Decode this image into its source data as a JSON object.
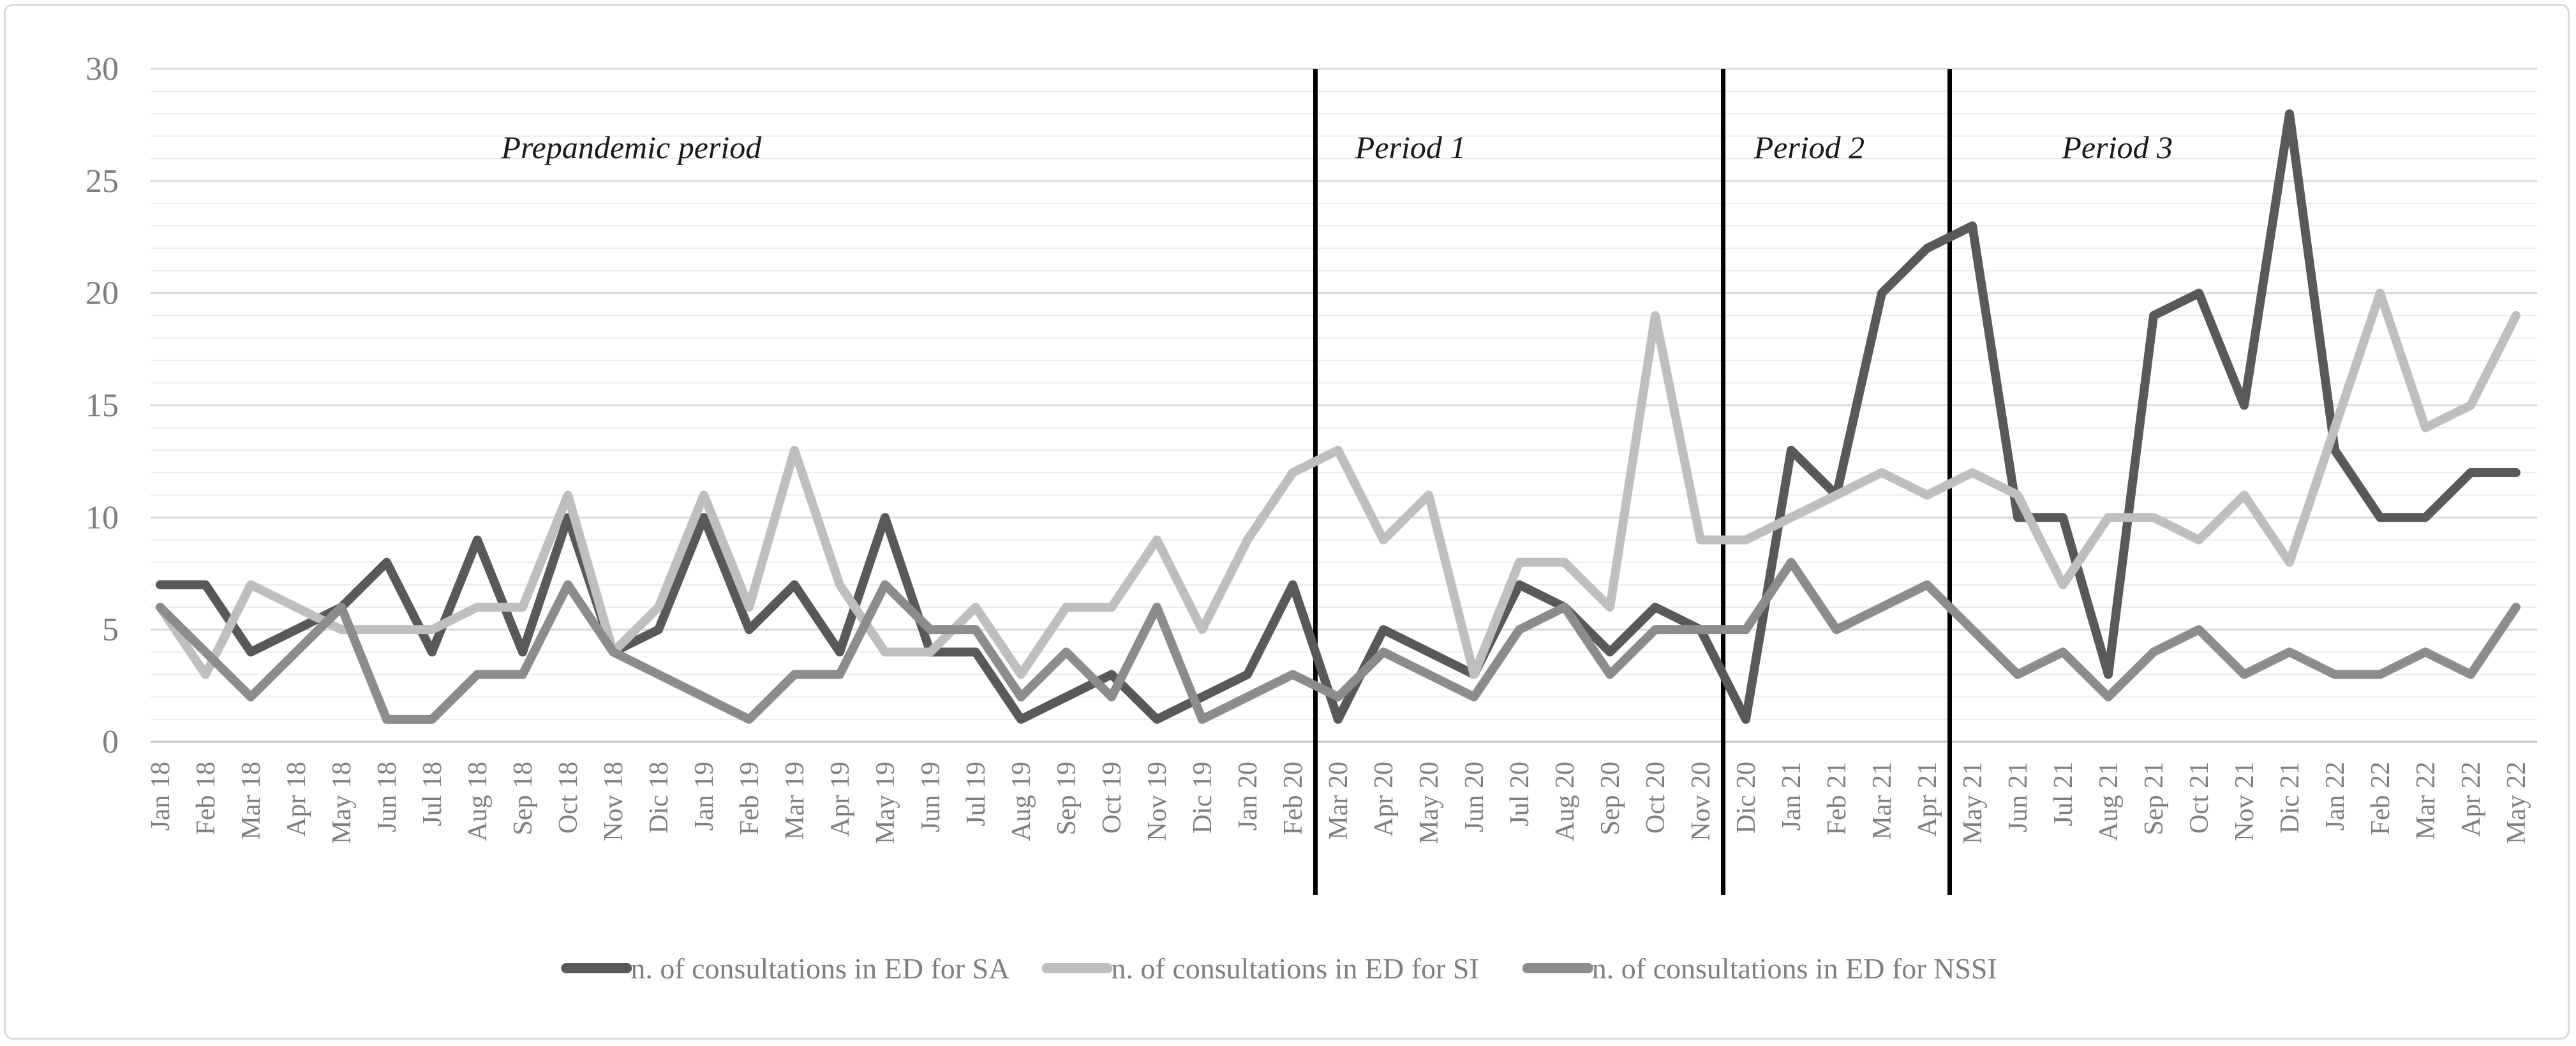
{
  "figure": {
    "background": "#ffffff",
    "border_color": "#d9d9d9"
  },
  "chart_data": {
    "type": "line",
    "title": "",
    "xlabel": "",
    "ylabel": "",
    "ylim": [
      0,
      30
    ],
    "ytick_interval": 5,
    "minor_grid_interval": 1,
    "grid": "horizontal",
    "legend_position": "bottom",
    "y_tick_labels": [
      "30",
      "25",
      "20",
      "15",
      "10",
      "5",
      "0"
    ],
    "x_categories": [
      "Jan 18",
      "Feb 18",
      "Mar 18",
      "Apr 18",
      "May 18",
      "Jun 18",
      "Jul 18",
      "Aug 18",
      "Sep 18",
      "Oct 18",
      "Nov 18",
      "Dic 18",
      "Jan 19",
      "Feb 19",
      "Mar 19",
      "Apr 19",
      "May 19",
      "Jun 19",
      "Jul 19",
      "Aug 19",
      "Sep 19",
      "Oct 19",
      "Nov 19",
      "Dic 19",
      "Jan 20",
      "Feb 20",
      "Mar 20",
      "Apr 20",
      "May 20",
      "Jun 20",
      "Jul 20",
      "Aug 20",
      "Sep 20",
      "Oct 20",
      "Nov 20",
      "Dic 20",
      "Jan 21",
      "Feb 21",
      "Mar 21",
      "Apr 21",
      "May 21",
      "Jun 21",
      "Jul 21",
      "Aug 21",
      "Sep 21",
      "Oct 21",
      "Nov 21",
      "Dic 21",
      "Jan 22",
      "Feb 22",
      "Mar 22",
      "Apr 22",
      "May 22"
    ],
    "series": [
      {
        "name": "n. of consultations in ED for SA",
        "color": "#595959",
        "values": [
          7,
          7,
          4,
          5,
          6,
          8,
          4,
          9,
          4,
          10,
          4,
          5,
          10,
          5,
          7,
          4,
          10,
          4,
          4,
          1,
          2,
          3,
          1,
          2,
          3,
          7,
          1,
          5,
          4,
          3,
          7,
          6,
          4,
          6,
          5,
          1,
          13,
          11,
          20,
          22,
          23,
          10,
          10,
          3,
          19,
          20,
          15,
          28,
          13,
          10,
          10,
          12,
          12
        ]
      },
      {
        "name": "n. of consultations in ED for SI",
        "color": "#bfbfbf",
        "values": [
          6,
          3,
          7,
          6,
          5,
          5,
          5,
          6,
          6,
          11,
          4,
          6,
          11,
          6,
          13,
          7,
          4,
          4,
          6,
          3,
          6,
          6,
          9,
          5,
          9,
          12,
          13,
          9,
          11,
          3,
          8,
          8,
          6,
          19,
          9,
          9,
          10,
          11,
          12,
          11,
          12,
          11,
          7,
          10,
          10,
          9,
          11,
          8,
          14,
          20,
          14,
          15,
          19
        ]
      },
      {
        "name": "n. of consultations in ED for NSSI",
        "color": "#8c8c8c",
        "values": [
          6,
          4,
          2,
          4,
          6,
          1,
          1,
          3,
          3,
          7,
          4,
          3,
          2,
          1,
          3,
          3,
          7,
          5,
          5,
          2,
          4,
          2,
          6,
          1,
          2,
          3,
          2,
          4,
          3,
          2,
          5,
          6,
          3,
          5,
          5,
          5,
          8,
          5,
          6,
          7,
          5,
          3,
          4,
          2,
          4,
          5,
          3,
          4,
          3,
          3,
          4,
          3,
          6
        ]
      }
    ],
    "period_dividers": [
      {
        "between_categories": [
          "Feb 20",
          "Mar 20"
        ],
        "boundary_index": 25.5
      },
      {
        "between_categories": [
          "Nov 20",
          "Dic 20"
        ],
        "boundary_index": 34.5
      },
      {
        "between_categories": [
          "Apr 21",
          "May 21"
        ],
        "boundary_index": 39.5
      }
    ],
    "period_labels": [
      {
        "label": "Prepandemic period",
        "center_index": 10.4
      },
      {
        "label": "Period 1",
        "center_index": 27.6
      },
      {
        "label": "Period 2",
        "center_index": 36.4
      },
      {
        "label": "Period 3",
        "center_index": 43.2
      }
    ]
  },
  "style_data": {
    "axis_text_color": "#7f7f7f",
    "period_label_color": "#1a1a1a",
    "divider_color": "#000000",
    "minor_grid_color": "#ececec",
    "major_grid_color": "#d9d9d9",
    "zero_line_color": "#c0c0c0",
    "legend_text_color": "#7f7f7f"
  }
}
